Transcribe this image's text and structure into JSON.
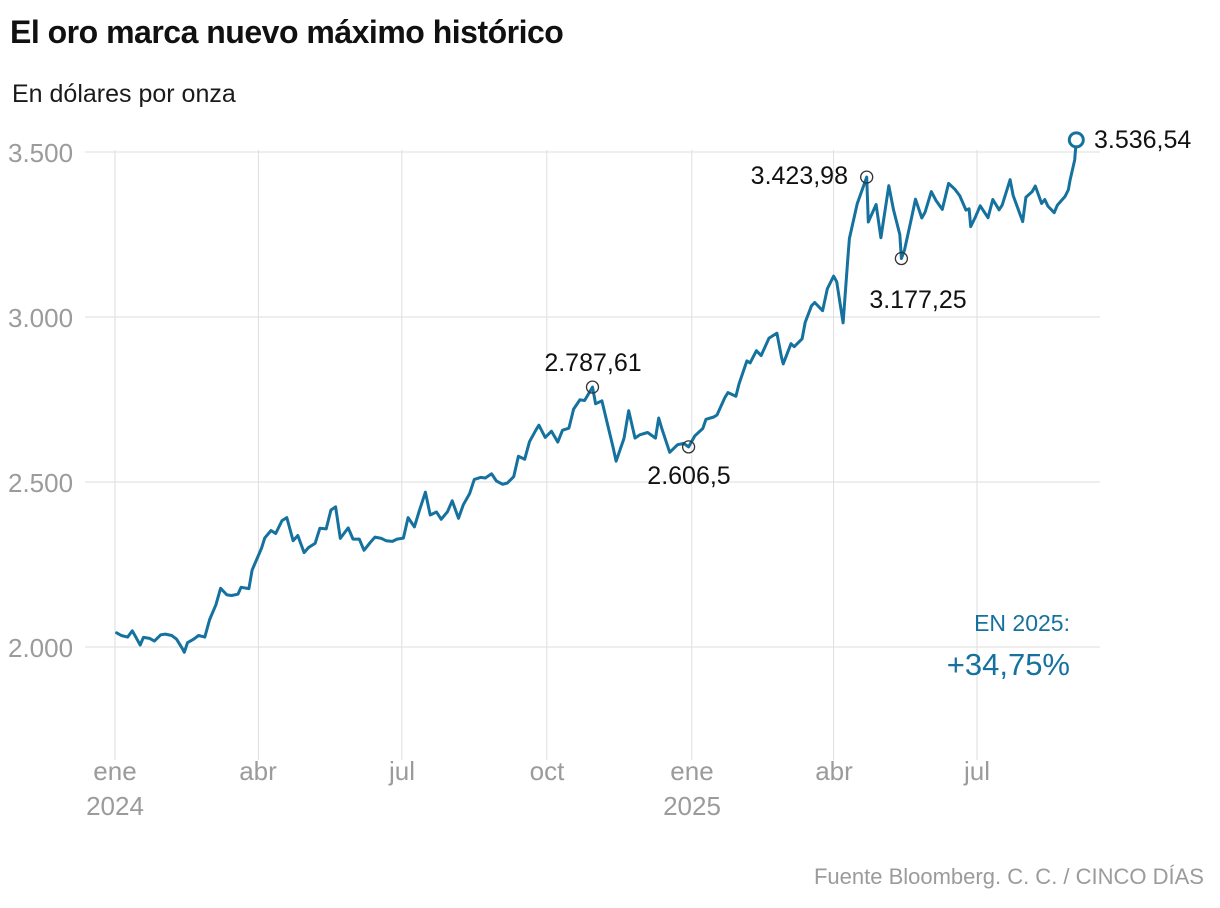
{
  "page": {
    "title": "El oro marca nuevo máximo histórico",
    "subtitle": "En dólares por onza",
    "source": "Fuente Bloomberg. C. C. / CINCO DÍAS"
  },
  "highlight": {
    "label": "EN 2025:",
    "value": "+34,75%"
  },
  "colors": {
    "line": "#15719e",
    "grid": "#dedede",
    "axis_text": "#9b9b9b",
    "annotation_text": "#111111",
    "marker_stroke": "#333333"
  },
  "chart_data": {
    "type": "line",
    "title": "El oro marca nuevo máximo histórico",
    "subtitle": "En dólares por onza",
    "unit": "dólares por onza",
    "ylim": [
      1950,
      3560
    ],
    "grid": true,
    "yticks": [
      {
        "value": 3500,
        "label": "3.500"
      },
      {
        "value": 3000,
        "label": "3.000"
      },
      {
        "value": 2500,
        "label": "2.500"
      },
      {
        "value": 2000,
        "label": "2.000"
      }
    ],
    "xticks": [
      {
        "date": "2024-01-01",
        "label": "ene",
        "year": "2024"
      },
      {
        "date": "2024-04-01",
        "label": "abr"
      },
      {
        "date": "2024-07-01",
        "label": "jul"
      },
      {
        "date": "2024-10-01",
        "label": "oct"
      },
      {
        "date": "2025-01-01",
        "label": "ene",
        "year": "2025"
      },
      {
        "date": "2025-04-01",
        "label": "abr"
      },
      {
        "date": "2025-07-01",
        "label": "jul"
      }
    ],
    "annotations": [
      {
        "date": "2024-10-30",
        "value": 2787.61,
        "label": "2.787,61"
      },
      {
        "date": "2024-12-30",
        "value": 2606.5,
        "label": "2.606,5"
      },
      {
        "date": "2025-04-22",
        "value": 3423.98,
        "label": "3.423,98"
      },
      {
        "date": "2025-05-14",
        "value": 3177.25,
        "label": "3.177,25"
      },
      {
        "date": "2025-09-02",
        "value": 3536.54,
        "label": "3.536,54",
        "end": true
      }
    ],
    "series": [
      {
        "name": "Oro (dólares por onza)",
        "points": [
          [
            "2024-01-02",
            2043
          ],
          [
            "2024-01-05",
            2035
          ],
          [
            "2024-01-09",
            2030
          ],
          [
            "2024-01-12",
            2049
          ],
          [
            "2024-01-17",
            2006
          ],
          [
            "2024-01-19",
            2029
          ],
          [
            "2024-01-23",
            2026
          ],
          [
            "2024-01-26",
            2018
          ],
          [
            "2024-01-30",
            2037
          ],
          [
            "2024-02-02",
            2039
          ],
          [
            "2024-02-06",
            2035
          ],
          [
            "2024-02-09",
            2024
          ],
          [
            "2024-02-13",
            1993
          ],
          [
            "2024-02-14",
            1984
          ],
          [
            "2024-02-16",
            2013
          ],
          [
            "2024-02-20",
            2024
          ],
          [
            "2024-02-23",
            2035
          ],
          [
            "2024-02-27",
            2030
          ],
          [
            "2024-03-01",
            2083
          ],
          [
            "2024-03-05",
            2128
          ],
          [
            "2024-03-08",
            2178
          ],
          [
            "2024-03-12",
            2158
          ],
          [
            "2024-03-15",
            2156
          ],
          [
            "2024-03-19",
            2160
          ],
          [
            "2024-03-21",
            2181
          ],
          [
            "2024-03-26",
            2177
          ],
          [
            "2024-03-28",
            2233
          ],
          [
            "2024-04-03",
            2300
          ],
          [
            "2024-04-05",
            2330
          ],
          [
            "2024-04-09",
            2353
          ],
          [
            "2024-04-12",
            2344
          ],
          [
            "2024-04-16",
            2383
          ],
          [
            "2024-04-19",
            2392
          ],
          [
            "2024-04-23",
            2322
          ],
          [
            "2024-04-26",
            2338
          ],
          [
            "2024-04-30",
            2286
          ],
          [
            "2024-05-03",
            2302
          ],
          [
            "2024-05-07",
            2314
          ],
          [
            "2024-05-10",
            2360
          ],
          [
            "2024-05-14",
            2358
          ],
          [
            "2024-05-17",
            2415
          ],
          [
            "2024-05-20",
            2425
          ],
          [
            "2024-05-23",
            2329
          ],
          [
            "2024-05-28",
            2361
          ],
          [
            "2024-05-31",
            2327
          ],
          [
            "2024-06-04",
            2327
          ],
          [
            "2024-06-07",
            2293
          ],
          [
            "2024-06-11",
            2317
          ],
          [
            "2024-06-14",
            2333
          ],
          [
            "2024-06-18",
            2329
          ],
          [
            "2024-06-21",
            2322
          ],
          [
            "2024-06-25",
            2320
          ],
          [
            "2024-06-28",
            2327
          ],
          [
            "2024-07-02",
            2330
          ],
          [
            "2024-07-05",
            2392
          ],
          [
            "2024-07-09",
            2364
          ],
          [
            "2024-07-12",
            2411
          ],
          [
            "2024-07-16",
            2469
          ],
          [
            "2024-07-19",
            2400
          ],
          [
            "2024-07-23",
            2409
          ],
          [
            "2024-07-26",
            2387
          ],
          [
            "2024-07-30",
            2410
          ],
          [
            "2024-08-02",
            2443
          ],
          [
            "2024-08-06",
            2390
          ],
          [
            "2024-08-09",
            2431
          ],
          [
            "2024-08-13",
            2465
          ],
          [
            "2024-08-16",
            2508
          ],
          [
            "2024-08-20",
            2514
          ],
          [
            "2024-08-23",
            2512
          ],
          [
            "2024-08-27",
            2525
          ],
          [
            "2024-08-30",
            2503
          ],
          [
            "2024-09-03",
            2493
          ],
          [
            "2024-09-06",
            2497
          ],
          [
            "2024-09-10",
            2516
          ],
          [
            "2024-09-13",
            2578
          ],
          [
            "2024-09-17",
            2569
          ],
          [
            "2024-09-20",
            2622
          ],
          [
            "2024-09-24",
            2657
          ],
          [
            "2024-09-26",
            2672
          ],
          [
            "2024-09-30",
            2635
          ],
          [
            "2024-10-04",
            2654
          ],
          [
            "2024-10-08",
            2621
          ],
          [
            "2024-10-11",
            2657
          ],
          [
            "2024-10-15",
            2663
          ],
          [
            "2024-10-18",
            2721
          ],
          [
            "2024-10-22",
            2749
          ],
          [
            "2024-10-25",
            2747
          ],
          [
            "2024-10-30",
            2787.61
          ],
          [
            "2024-11-01",
            2737
          ],
          [
            "2024-11-05",
            2746
          ],
          [
            "2024-11-08",
            2685
          ],
          [
            "2024-11-12",
            2606
          ],
          [
            "2024-11-14",
            2563
          ],
          [
            "2024-11-19",
            2632
          ],
          [
            "2024-11-22",
            2716
          ],
          [
            "2024-11-26",
            2633
          ],
          [
            "2024-11-29",
            2643
          ],
          [
            "2024-12-04",
            2650
          ],
          [
            "2024-12-09",
            2633
          ],
          [
            "2024-12-11",
            2694
          ],
          [
            "2024-12-13",
            2662
          ],
          [
            "2024-12-18",
            2590
          ],
          [
            "2024-12-23",
            2613
          ],
          [
            "2024-12-27",
            2617
          ],
          [
            "2024-12-30",
            2606.5
          ],
          [
            "2025-01-03",
            2640
          ],
          [
            "2025-01-08",
            2662
          ],
          [
            "2025-01-10",
            2690
          ],
          [
            "2025-01-15",
            2697
          ],
          [
            "2025-01-17",
            2703
          ],
          [
            "2025-01-22",
            2756
          ],
          [
            "2025-01-24",
            2771
          ],
          [
            "2025-01-29",
            2760
          ],
          [
            "2025-01-31",
            2797
          ],
          [
            "2025-02-05",
            2867
          ],
          [
            "2025-02-07",
            2861
          ],
          [
            "2025-02-11",
            2898
          ],
          [
            "2025-02-14",
            2883
          ],
          [
            "2025-02-19",
            2936
          ],
          [
            "2025-02-24",
            2951
          ],
          [
            "2025-02-27",
            2877
          ],
          [
            "2025-02-28",
            2858
          ],
          [
            "2025-03-05",
            2919
          ],
          [
            "2025-03-07",
            2910
          ],
          [
            "2025-03-12",
            2934
          ],
          [
            "2025-03-14",
            2984
          ],
          [
            "2025-03-18",
            3034
          ],
          [
            "2025-03-20",
            3044
          ],
          [
            "2025-03-25",
            3019
          ],
          [
            "2025-03-28",
            3085
          ],
          [
            "2025-04-01",
            3124
          ],
          [
            "2025-04-03",
            3107
          ],
          [
            "2025-04-07",
            2982
          ],
          [
            "2025-04-10",
            3176
          ],
          [
            "2025-04-11",
            3238
          ],
          [
            "2025-04-16",
            3343
          ],
          [
            "2025-04-22",
            3423.98
          ],
          [
            "2025-04-23",
            3288
          ],
          [
            "2025-04-28",
            3341
          ],
          [
            "2025-05-01",
            3240
          ],
          [
            "2025-05-06",
            3398
          ],
          [
            "2025-05-09",
            3325
          ],
          [
            "2025-05-13",
            3250
          ],
          [
            "2025-05-14",
            3177.25
          ],
          [
            "2025-05-16",
            3203
          ],
          [
            "2025-05-20",
            3290
          ],
          [
            "2025-05-23",
            3357
          ],
          [
            "2025-05-27",
            3300
          ],
          [
            "2025-05-29",
            3317
          ],
          [
            "2025-06-02",
            3380
          ],
          [
            "2025-06-05",
            3353
          ],
          [
            "2025-06-09",
            3326
          ],
          [
            "2025-06-13",
            3405
          ],
          [
            "2025-06-17",
            3387
          ],
          [
            "2025-06-20",
            3368
          ],
          [
            "2025-06-24",
            3324
          ],
          [
            "2025-06-26",
            3328
          ],
          [
            "2025-06-27",
            3274
          ],
          [
            "2025-06-30",
            3303
          ],
          [
            "2025-07-03",
            3337
          ],
          [
            "2025-07-08",
            3301
          ],
          [
            "2025-07-11",
            3356
          ],
          [
            "2025-07-15",
            3325
          ],
          [
            "2025-07-17",
            3339
          ],
          [
            "2025-07-22",
            3416
          ],
          [
            "2025-07-24",
            3368
          ],
          [
            "2025-07-30",
            3289
          ],
          [
            "2025-08-01",
            3363
          ],
          [
            "2025-08-05",
            3380
          ],
          [
            "2025-08-07",
            3397
          ],
          [
            "2025-08-11",
            3344
          ],
          [
            "2025-08-13",
            3356
          ],
          [
            "2025-08-15",
            3336
          ],
          [
            "2025-08-19",
            3316
          ],
          [
            "2025-08-21",
            3339
          ],
          [
            "2025-08-26",
            3366
          ],
          [
            "2025-08-28",
            3386
          ],
          [
            "2025-08-29",
            3414
          ],
          [
            "2025-09-01",
            3476
          ],
          [
            "2025-09-02",
            3536.54
          ]
        ]
      }
    ]
  }
}
